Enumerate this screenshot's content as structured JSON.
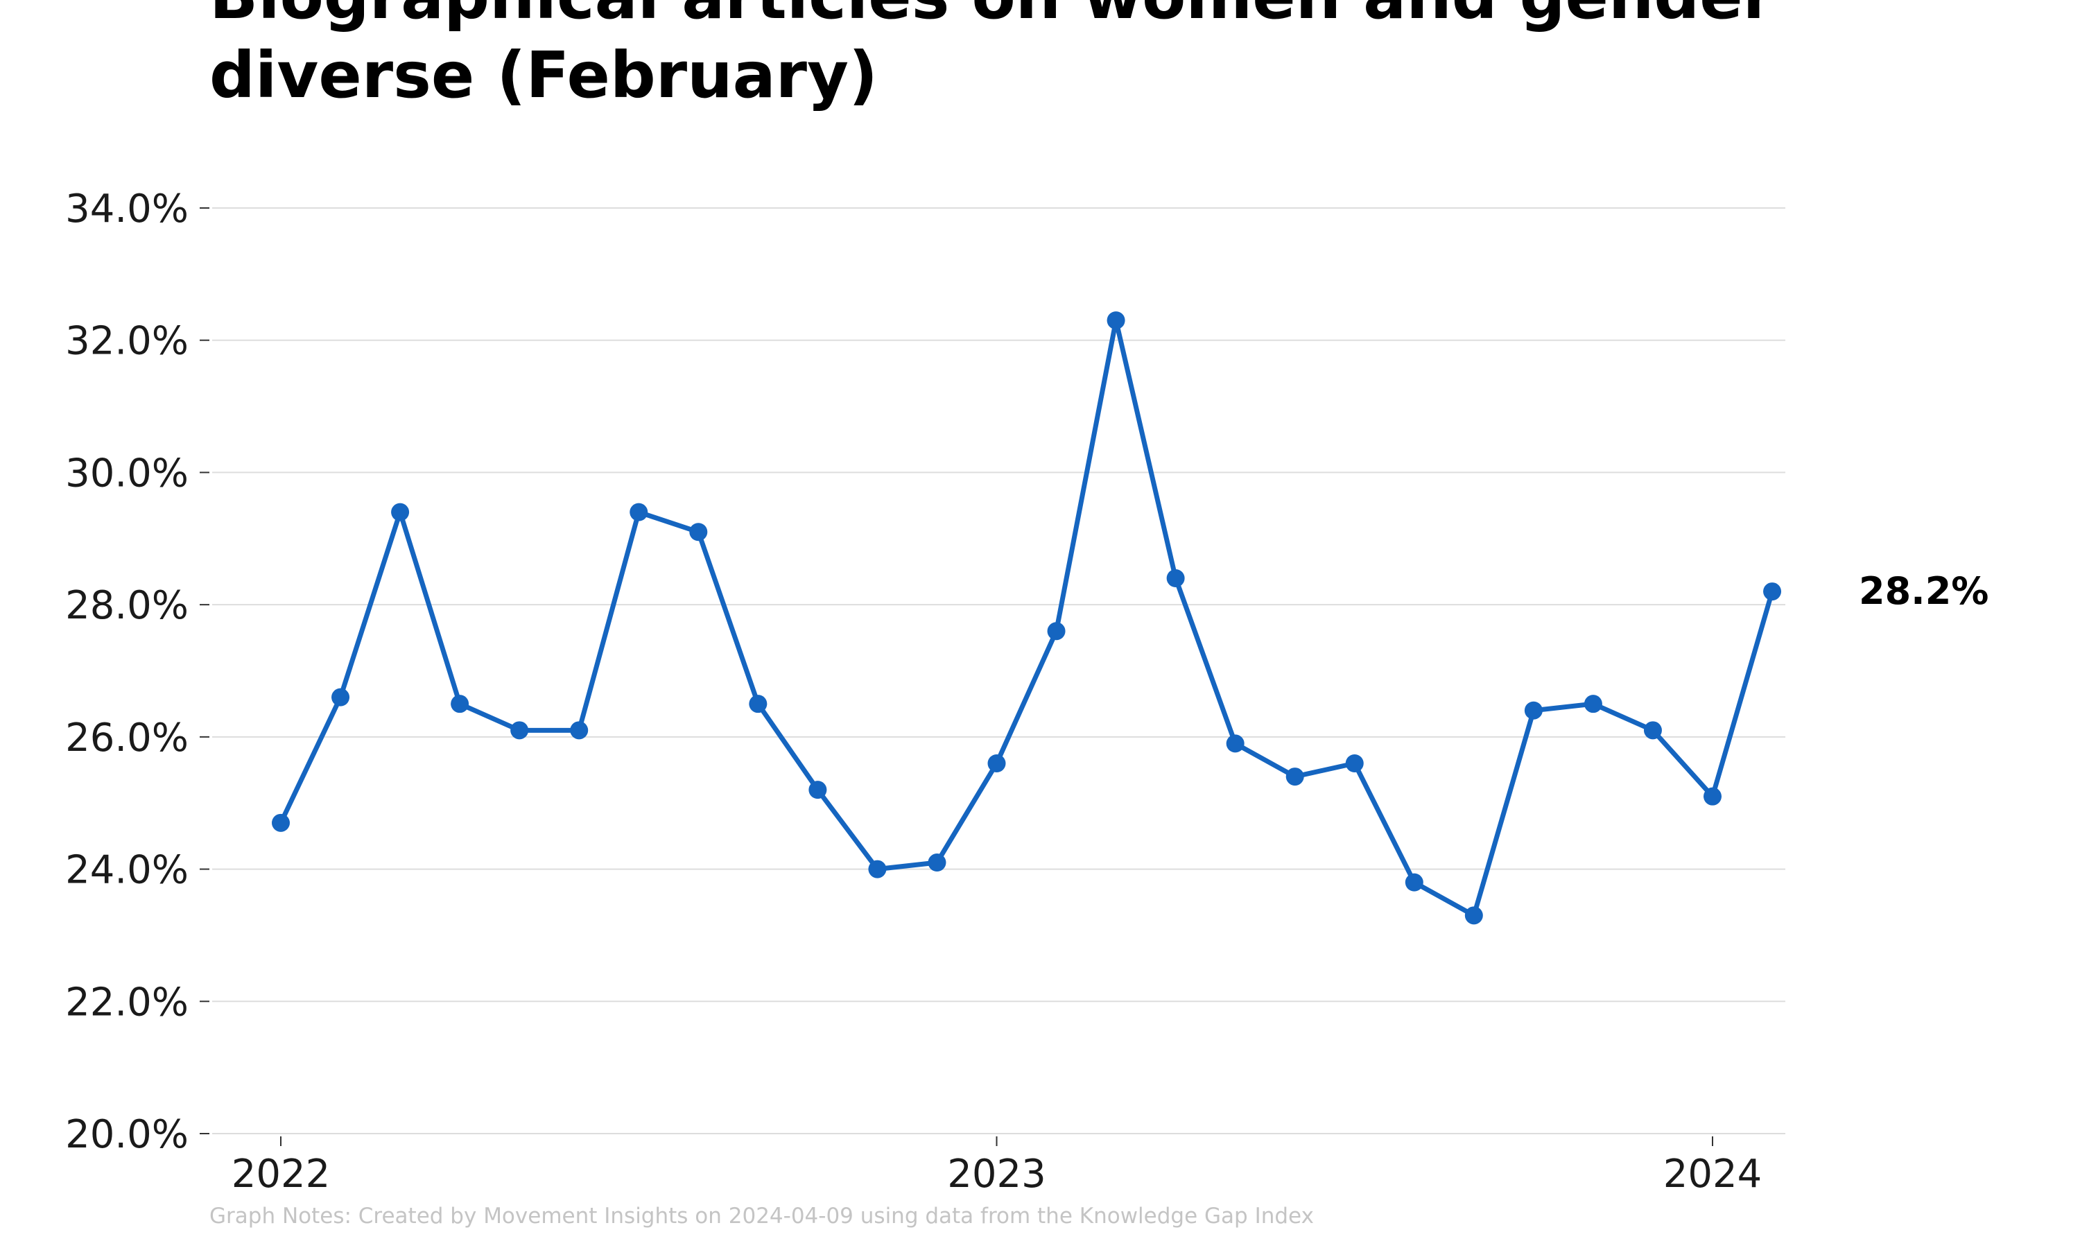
{
  "page": {
    "title": "Biographical articles on women and gender diverse (February)",
    "note": "Graph Notes: Created by Movement Insights  on 2024-04-09 using data from the Knowledge Gap Index"
  },
  "chart_data": {
    "type": "line",
    "title": "Biographical articles on women and gender diverse (February)",
    "xlabel": "",
    "ylabel": "",
    "x": [
      "2022-01",
      "2022-02",
      "2022-03",
      "2022-04",
      "2022-05",
      "2022-06",
      "2022-07",
      "2022-08",
      "2022-09",
      "2022-10",
      "2022-11",
      "2022-12",
      "2023-01",
      "2023-02",
      "2023-03",
      "2023-04",
      "2023-05",
      "2023-06",
      "2023-07",
      "2023-08",
      "2023-09",
      "2023-10",
      "2023-11",
      "2023-12",
      "2024-01",
      "2024-02"
    ],
    "series": [
      {
        "values": [
          24.7,
          26.6,
          29.4,
          26.5,
          26.1,
          26.1,
          29.4,
          29.1,
          26.5,
          25.2,
          24.0,
          24.1,
          25.6,
          27.6,
          32.3,
          28.4,
          25.9,
          25.4,
          25.6,
          23.8,
          23.3,
          26.4,
          26.5,
          26.1,
          25.1,
          28.2
        ],
        "color": "#1565c0"
      }
    ],
    "ylim": [
      20,
      34
    ],
    "yticks": [
      "20.0%",
      "22.0%",
      "24.0%",
      "26.0%",
      "28.0%",
      "30.0%",
      "32.0%",
      "34.0%"
    ],
    "xticks": [
      "2022",
      "2023",
      "2024"
    ],
    "end_label": "28.2%",
    "grid": true,
    "colors": {
      "line": "#1565c0",
      "grid": "#dddddd"
    }
  }
}
